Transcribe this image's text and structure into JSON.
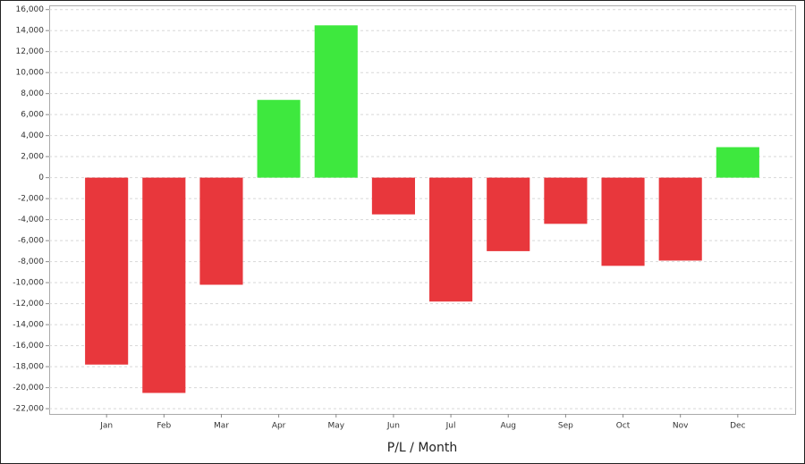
{
  "chart_data": {
    "type": "bar",
    "title": "P/L / Month",
    "categories": [
      "Jan",
      "Feb",
      "Mar",
      "Apr",
      "May",
      "Jun",
      "Jul",
      "Aug",
      "Sep",
      "Oct",
      "Nov",
      "Dec"
    ],
    "values": [
      -17800,
      -20500,
      -10200,
      7400,
      14500,
      -3500,
      -11800,
      -7000,
      -4400,
      -8400,
      -7900,
      2900
    ],
    "positive_color": "#3ee83e",
    "negative_color": "#e8373c",
    "ylim": [
      -22500,
      16400
    ],
    "yticks": [
      {
        "value": -22000,
        "label": "-22,000"
      },
      {
        "value": -20000,
        "label": "-20,000"
      },
      {
        "value": -18000,
        "label": "-18,000"
      },
      {
        "value": -16000,
        "label": "-16,000"
      },
      {
        "value": -14000,
        "label": "-14,000"
      },
      {
        "value": -12000,
        "label": "-12,000"
      },
      {
        "value": -10000,
        "label": "-10,000"
      },
      {
        "value": -8000,
        "label": "-8,000"
      },
      {
        "value": -6000,
        "label": "-6,000"
      },
      {
        "value": -4000,
        "label": "-4,000"
      },
      {
        "value": -2000,
        "label": "-2,000"
      },
      0,
      {
        "value": 2000,
        "label": "2,000"
      },
      {
        "value": 4000,
        "label": "4,000"
      },
      {
        "value": 6000,
        "label": "6,000"
      },
      {
        "value": 8000,
        "label": "8,000"
      },
      {
        "value": 10000,
        "label": "10,000"
      },
      {
        "value": 12000,
        "label": "12,000"
      },
      {
        "value": 14000,
        "label": "14,000"
      },
      {
        "value": 16000,
        "label": "16,000"
      }
    ],
    "grid": true
  }
}
